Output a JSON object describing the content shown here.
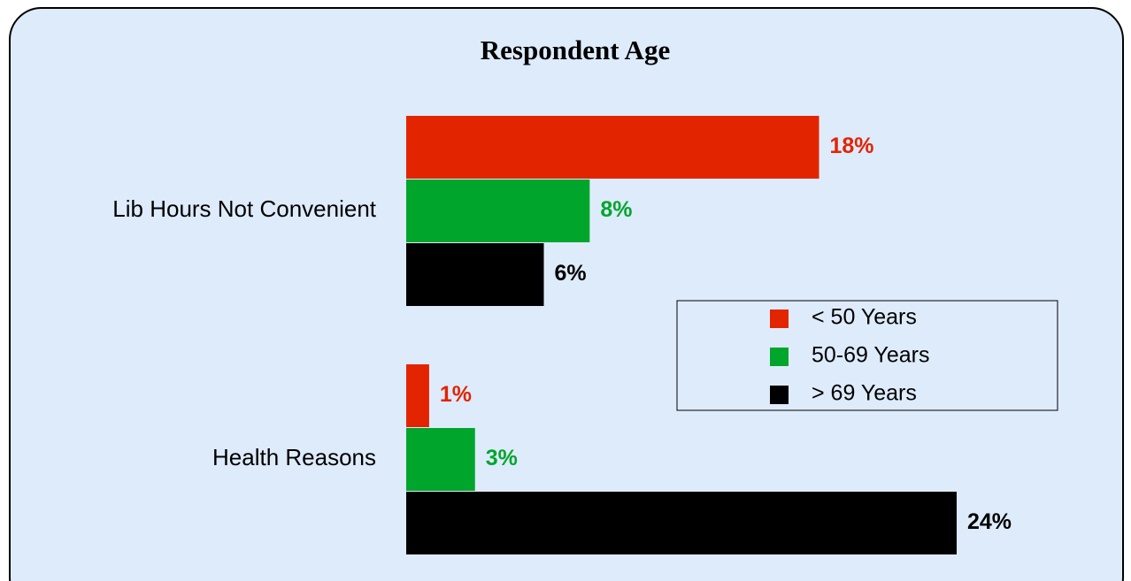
{
  "chart_data": {
    "type": "barh",
    "title": "Respondent Age",
    "categories": [
      "Lib Hours Not Convenient",
      "Health Reasons"
    ],
    "series": [
      {
        "name": "< 50 Years",
        "color": "#e32400",
        "values": [
          18,
          1
        ],
        "value_labels": [
          "18%",
          "1%"
        ]
      },
      {
        "name": "50-69 Years",
        "color": "#00a52c",
        "values": [
          8,
          3
        ],
        "value_labels": [
          "8%",
          "3%"
        ]
      },
      {
        "name": "> 69 Years",
        "color": "#000000",
        "values": [
          6,
          24
        ],
        "value_labels": [
          "6%",
          "24%"
        ]
      }
    ],
    "legend": "right"
  }
}
